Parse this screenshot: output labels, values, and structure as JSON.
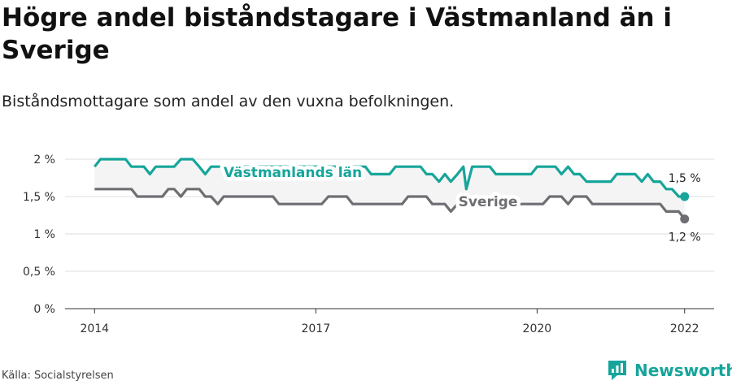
{
  "title": "Högre andel biståndstagare i Västmanland än i Sverige",
  "subtitle": "Biståndsmottagare som andel av den vuxna befolkningen.",
  "source": "Källa: Socialstyrelsen",
  "brand": {
    "name": "Newsworthy",
    "icon": "newsworthy-logo-icon",
    "color": "#16a59a"
  },
  "chart_data": {
    "type": "line",
    "title": "Högre andel biståndstagare i Västmanland än i Sverige",
    "subtitle": "Biståndsmottagare som andel av den vuxna befolkningen.",
    "xlabel": "",
    "ylabel": "",
    "xlim": [
      2013.6,
      2022.4
    ],
    "ylim": [
      0,
      2
    ],
    "x_ticks": [
      2014,
      2017,
      2020,
      2022
    ],
    "x_tick_labels": [
      "2014",
      "2017",
      "2020",
      "2022"
    ],
    "y_ticks": [
      0,
      0.5,
      1,
      1.5,
      2
    ],
    "y_tick_labels": [
      "0 %",
      "0,5 %",
      "1 %",
      "1,5 %",
      "2 %"
    ],
    "grid": true,
    "legend": "direct labels on lines",
    "series": [
      {
        "name": "Västmanlands län",
        "color": "#16a59a",
        "end_label": "1,5 %",
        "points": [
          [
            2014.0,
            1.9
          ],
          [
            2014.08,
            2.0
          ],
          [
            2014.17,
            2.0
          ],
          [
            2014.25,
            2.0
          ],
          [
            2014.33,
            2.0
          ],
          [
            2014.42,
            2.0
          ],
          [
            2014.5,
            1.9
          ],
          [
            2014.58,
            1.9
          ],
          [
            2014.67,
            1.9
          ],
          [
            2014.75,
            1.8
          ],
          [
            2014.83,
            1.9
          ],
          [
            2014.92,
            1.9
          ],
          [
            2015.0,
            1.9
          ],
          [
            2015.08,
            1.9
          ],
          [
            2015.17,
            2.0
          ],
          [
            2015.25,
            2.0
          ],
          [
            2015.33,
            2.0
          ],
          [
            2015.42,
            1.9
          ],
          [
            2015.5,
            1.8
          ],
          [
            2015.58,
            1.9
          ],
          [
            2015.67,
            1.9
          ],
          [
            2015.75,
            1.9
          ],
          [
            2015.83,
            1.9
          ],
          [
            2015.92,
            1.9
          ],
          [
            2016.0,
            1.9
          ],
          [
            2016.08,
            1.9
          ],
          [
            2016.17,
            1.9
          ],
          [
            2016.25,
            1.9
          ],
          [
            2016.33,
            1.9
          ],
          [
            2016.42,
            1.9
          ],
          [
            2016.5,
            1.9
          ],
          [
            2016.58,
            1.9
          ],
          [
            2016.67,
            1.9
          ],
          [
            2016.75,
            1.9
          ],
          [
            2016.83,
            1.9
          ],
          [
            2016.92,
            1.9
          ],
          [
            2017.0,
            1.9
          ],
          [
            2017.08,
            1.9
          ],
          [
            2017.17,
            1.9
          ],
          [
            2017.25,
            1.9
          ],
          [
            2017.33,
            1.9
          ],
          [
            2017.42,
            1.9
          ],
          [
            2017.5,
            1.9
          ],
          [
            2017.58,
            1.9
          ],
          [
            2017.67,
            1.9
          ],
          [
            2017.75,
            1.8
          ],
          [
            2017.83,
            1.8
          ],
          [
            2017.92,
            1.8
          ],
          [
            2018.0,
            1.8
          ],
          [
            2018.08,
            1.9
          ],
          [
            2018.17,
            1.9
          ],
          [
            2018.25,
            1.9
          ],
          [
            2018.33,
            1.9
          ],
          [
            2018.42,
            1.9
          ],
          [
            2018.5,
            1.8
          ],
          [
            2018.58,
            1.8
          ],
          [
            2018.67,
            1.7
          ],
          [
            2018.75,
            1.8
          ],
          [
            2018.83,
            1.7
          ],
          [
            2018.92,
            1.8
          ],
          [
            2019.0,
            1.9
          ],
          [
            2019.04,
            1.6
          ],
          [
            2019.12,
            1.9
          ],
          [
            2019.2,
            1.9
          ],
          [
            2019.28,
            1.9
          ],
          [
            2019.36,
            1.9
          ],
          [
            2019.44,
            1.8
          ],
          [
            2019.52,
            1.8
          ],
          [
            2019.6,
            1.8
          ],
          [
            2019.68,
            1.8
          ],
          [
            2019.76,
            1.8
          ],
          [
            2019.84,
            1.8
          ],
          [
            2019.92,
            1.8
          ],
          [
            2020.0,
            1.9
          ],
          [
            2020.08,
            1.9
          ],
          [
            2020.17,
            1.9
          ],
          [
            2020.25,
            1.9
          ],
          [
            2020.33,
            1.8
          ],
          [
            2020.42,
            1.9
          ],
          [
            2020.5,
            1.8
          ],
          [
            2020.58,
            1.8
          ],
          [
            2020.67,
            1.7
          ],
          [
            2020.75,
            1.7
          ],
          [
            2020.83,
            1.7
          ],
          [
            2020.92,
            1.7
          ],
          [
            2021.0,
            1.7
          ],
          [
            2021.08,
            1.8
          ],
          [
            2021.17,
            1.8
          ],
          [
            2021.25,
            1.8
          ],
          [
            2021.33,
            1.8
          ],
          [
            2021.42,
            1.7
          ],
          [
            2021.5,
            1.8
          ],
          [
            2021.58,
            1.7
          ],
          [
            2021.67,
            1.7
          ],
          [
            2021.75,
            1.6
          ],
          [
            2021.83,
            1.6
          ],
          [
            2021.92,
            1.5
          ],
          [
            2022.0,
            1.5
          ]
        ]
      },
      {
        "name": "Sverige",
        "color": "#6e6e73",
        "end_label": "1,2 %",
        "points": [
          [
            2014.0,
            1.6
          ],
          [
            2014.08,
            1.6
          ],
          [
            2014.17,
            1.6
          ],
          [
            2014.25,
            1.6
          ],
          [
            2014.33,
            1.6
          ],
          [
            2014.42,
            1.6
          ],
          [
            2014.5,
            1.6
          ],
          [
            2014.58,
            1.5
          ],
          [
            2014.67,
            1.5
          ],
          [
            2014.75,
            1.5
          ],
          [
            2014.83,
            1.5
          ],
          [
            2014.92,
            1.5
          ],
          [
            2015.0,
            1.6
          ],
          [
            2015.08,
            1.6
          ],
          [
            2015.17,
            1.5
          ],
          [
            2015.25,
            1.6
          ],
          [
            2015.33,
            1.6
          ],
          [
            2015.42,
            1.6
          ],
          [
            2015.5,
            1.5
          ],
          [
            2015.58,
            1.5
          ],
          [
            2015.67,
            1.4
          ],
          [
            2015.75,
            1.5
          ],
          [
            2015.83,
            1.5
          ],
          [
            2015.92,
            1.5
          ],
          [
            2016.0,
            1.5
          ],
          [
            2016.08,
            1.5
          ],
          [
            2016.17,
            1.5
          ],
          [
            2016.25,
            1.5
          ],
          [
            2016.33,
            1.5
          ],
          [
            2016.42,
            1.5
          ],
          [
            2016.5,
            1.4
          ],
          [
            2016.58,
            1.4
          ],
          [
            2016.67,
            1.4
          ],
          [
            2016.75,
            1.4
          ],
          [
            2016.83,
            1.4
          ],
          [
            2016.92,
            1.4
          ],
          [
            2017.0,
            1.4
          ],
          [
            2017.08,
            1.4
          ],
          [
            2017.17,
            1.5
          ],
          [
            2017.25,
            1.5
          ],
          [
            2017.33,
            1.5
          ],
          [
            2017.42,
            1.5
          ],
          [
            2017.5,
            1.4
          ],
          [
            2017.58,
            1.4
          ],
          [
            2017.67,
            1.4
          ],
          [
            2017.75,
            1.4
          ],
          [
            2017.83,
            1.4
          ],
          [
            2017.92,
            1.4
          ],
          [
            2018.0,
            1.4
          ],
          [
            2018.08,
            1.4
          ],
          [
            2018.17,
            1.4
          ],
          [
            2018.25,
            1.5
          ],
          [
            2018.33,
            1.5
          ],
          [
            2018.42,
            1.5
          ],
          [
            2018.5,
            1.5
          ],
          [
            2018.58,
            1.4
          ],
          [
            2018.67,
            1.4
          ],
          [
            2018.75,
            1.4
          ],
          [
            2018.83,
            1.3
          ],
          [
            2018.92,
            1.4
          ],
          [
            2019.0,
            1.4
          ],
          [
            2019.08,
            1.4
          ],
          [
            2019.17,
            1.4
          ],
          [
            2019.25,
            1.4
          ],
          [
            2019.33,
            1.4
          ],
          [
            2019.42,
            1.4
          ],
          [
            2019.5,
            1.4
          ],
          [
            2019.58,
            1.4
          ],
          [
            2019.67,
            1.4
          ],
          [
            2019.75,
            1.4
          ],
          [
            2019.83,
            1.4
          ],
          [
            2019.92,
            1.4
          ],
          [
            2020.0,
            1.4
          ],
          [
            2020.08,
            1.4
          ],
          [
            2020.17,
            1.5
          ],
          [
            2020.25,
            1.5
          ],
          [
            2020.33,
            1.5
          ],
          [
            2020.42,
            1.4
          ],
          [
            2020.5,
            1.5
          ],
          [
            2020.58,
            1.5
          ],
          [
            2020.67,
            1.5
          ],
          [
            2020.75,
            1.4
          ],
          [
            2020.83,
            1.4
          ],
          [
            2020.92,
            1.4
          ],
          [
            2021.0,
            1.4
          ],
          [
            2021.08,
            1.4
          ],
          [
            2021.17,
            1.4
          ],
          [
            2021.25,
            1.4
          ],
          [
            2021.33,
            1.4
          ],
          [
            2021.42,
            1.4
          ],
          [
            2021.5,
            1.4
          ],
          [
            2021.58,
            1.4
          ],
          [
            2021.67,
            1.4
          ],
          [
            2021.75,
            1.3
          ],
          [
            2021.83,
            1.3
          ],
          [
            2021.92,
            1.3
          ],
          [
            2022.0,
            1.2
          ]
        ]
      }
    ]
  }
}
